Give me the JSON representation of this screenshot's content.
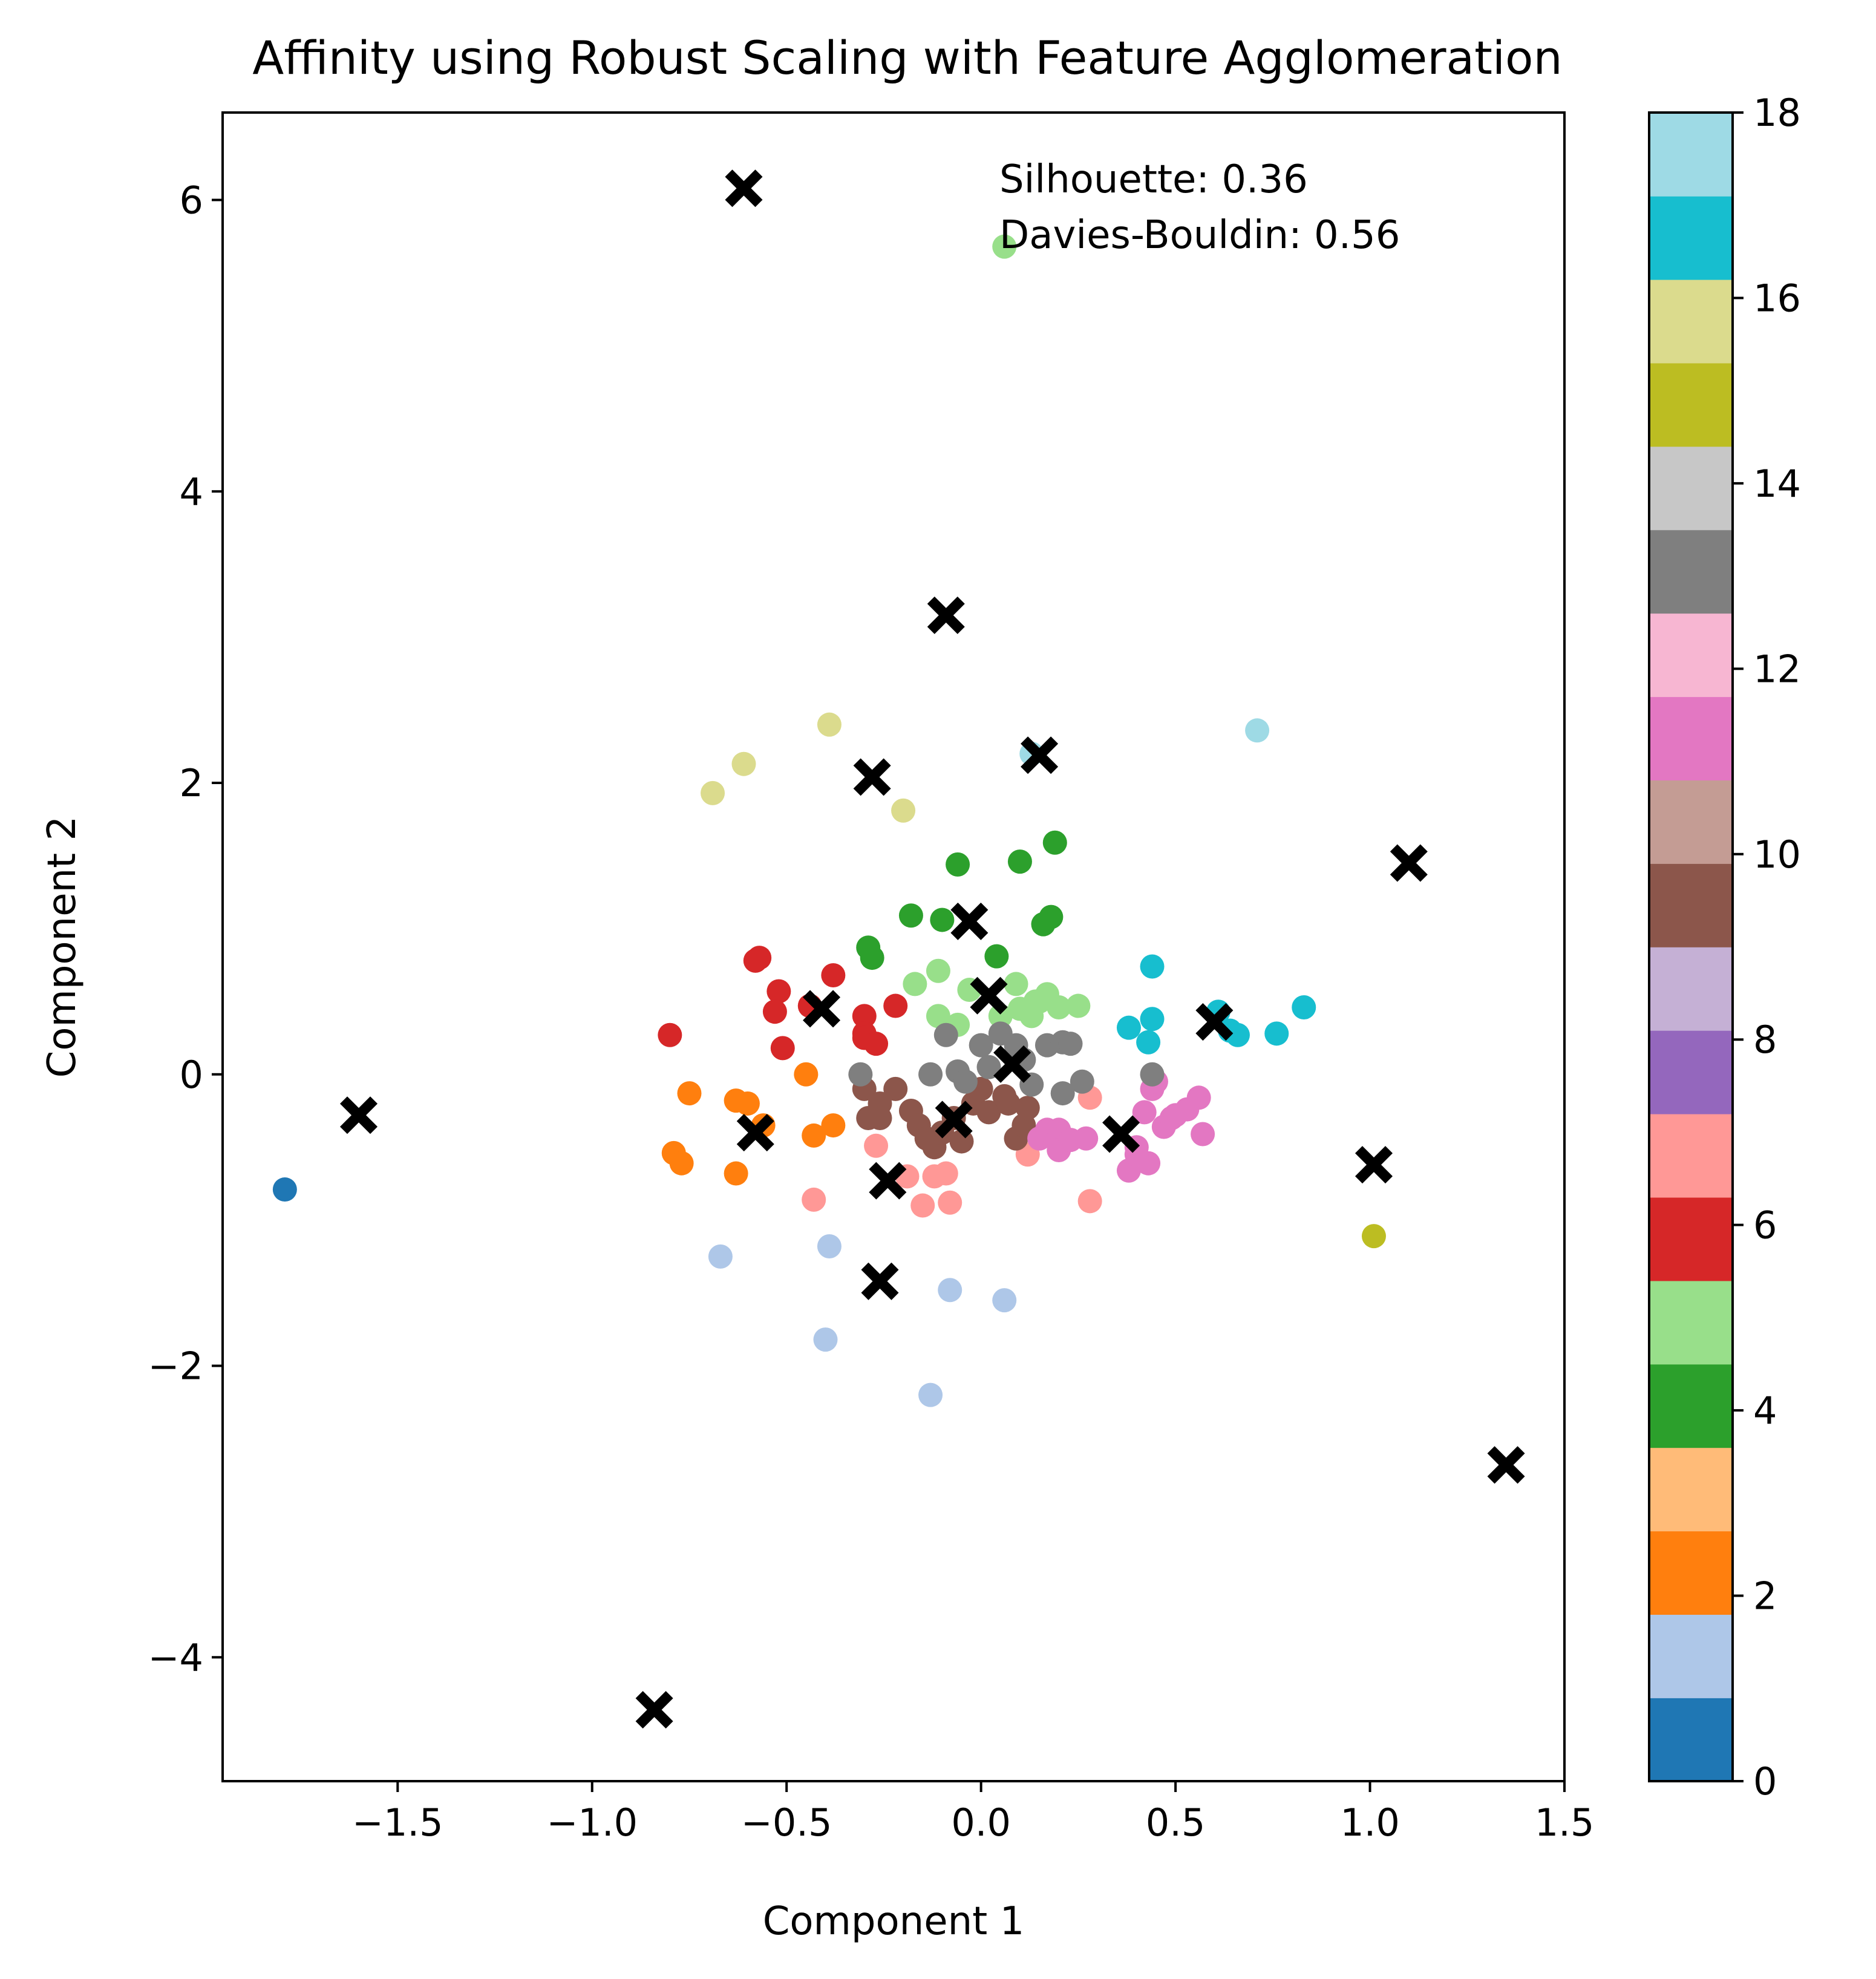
{
  "chart_data": {
    "type": "scatter",
    "title": "Affinity using Robust Scaling with Feature Agglomeration",
    "xlabel": "Component 1",
    "ylabel": "Component 2",
    "xlim": [
      -1.95,
      1.5
    ],
    "ylim": [
      -4.85,
      6.6
    ],
    "xticks": [
      -1.5,
      -1.0,
      -0.5,
      0.0,
      0.5,
      1.0,
      1.5
    ],
    "xtick_labels": [
      "−1.5",
      "−1.0",
      "−0.5",
      "0.0",
      "0.5",
      "1.0",
      "1.5"
    ],
    "yticks": [
      -4,
      -2,
      0,
      2,
      4,
      6
    ],
    "ytick_labels": [
      "−4",
      "−2",
      "0",
      "2",
      "4",
      "6"
    ],
    "grid": false,
    "annotations": [
      "Silhouette: 0.36",
      "Davies-Bouldin: 0.56"
    ],
    "colorbar": {
      "range": [
        0,
        18
      ],
      "ticks": [
        0,
        2,
        4,
        6,
        8,
        10,
        12,
        14,
        16,
        18
      ],
      "colors": [
        "#1f77b4",
        "#aec7e8",
        "#ff7f0e",
        "#ffbb78",
        "#2ca02c",
        "#98df8a",
        "#d62728",
        "#ff9896",
        "#9467bd",
        "#c5b0d5",
        "#8c564b",
        "#c49c94",
        "#e377c2",
        "#f7b6d2",
        "#7f7f7f",
        "#c7c7c7",
        "#bcbd22",
        "#dbdb8d",
        "#17becf",
        "#9edae5"
      ]
    },
    "series": [
      {
        "cluster": 0,
        "points": [
          [
            -1.79,
            -0.79
          ]
        ]
      },
      {
        "cluster": 1,
        "points": [
          [
            -0.67,
            -1.25
          ],
          [
            -0.39,
            -1.18
          ],
          [
            -0.4,
            -1.82
          ],
          [
            -0.08,
            -1.48
          ],
          [
            0.06,
            -1.55
          ],
          [
            -0.13,
            -2.2
          ]
        ]
      },
      {
        "cluster": 2,
        "points": [
          [
            -0.75,
            -0.13
          ],
          [
            -0.79,
            -0.54
          ],
          [
            -0.77,
            -0.61
          ],
          [
            -0.63,
            -0.18
          ],
          [
            -0.6,
            -0.2
          ],
          [
            -0.63,
            -0.68
          ],
          [
            -0.45,
            0.0
          ],
          [
            -0.38,
            -0.35
          ],
          [
            -0.43,
            -0.42
          ],
          [
            -0.56,
            -0.35
          ]
        ]
      },
      {
        "cluster": 4,
        "points": [
          [
            -0.29,
            0.87
          ],
          [
            -0.28,
            0.8
          ],
          [
            -0.18,
            1.09
          ],
          [
            -0.1,
            1.06
          ],
          [
            -0.06,
            1.44
          ],
          [
            0.1,
            1.46
          ],
          [
            0.19,
            1.59
          ],
          [
            0.04,
            0.81
          ],
          [
            0.18,
            1.08
          ],
          [
            0.16,
            1.03
          ]
        ]
      },
      {
        "cluster": 5,
        "points": [
          [
            -0.17,
            0.62
          ],
          [
            -0.11,
            0.71
          ],
          [
            -0.11,
            0.4
          ],
          [
            -0.06,
            0.34
          ],
          [
            -0.03,
            0.58
          ],
          [
            0.05,
            0.4
          ],
          [
            0.09,
            0.62
          ],
          [
            0.1,
            0.45
          ],
          [
            0.13,
            0.4
          ],
          [
            0.14,
            0.5
          ],
          [
            0.17,
            0.55
          ],
          [
            0.2,
            0.46
          ],
          [
            0.25,
            0.47
          ],
          [
            0.15,
            0.5
          ],
          [
            0.06,
            5.68
          ]
        ]
      },
      {
        "cluster": 6,
        "points": [
          [
            -0.8,
            0.27
          ],
          [
            -0.57,
            0.8
          ],
          [
            -0.58,
            0.78
          ],
          [
            -0.52,
            0.57
          ],
          [
            -0.53,
            0.43
          ],
          [
            -0.51,
            0.18
          ],
          [
            -0.44,
            0.47
          ],
          [
            -0.38,
            0.68
          ],
          [
            -0.3,
            0.4
          ],
          [
            -0.3,
            0.28
          ],
          [
            -0.3,
            0.25
          ],
          [
            -0.27,
            0.21
          ],
          [
            -0.22,
            0.47
          ]
        ]
      },
      {
        "cluster": 7,
        "points": [
          [
            -0.43,
            -0.86
          ],
          [
            -0.27,
            -0.49
          ],
          [
            -0.19,
            -0.7
          ],
          [
            -0.15,
            -0.9
          ],
          [
            -0.12,
            -0.7
          ],
          [
            -0.09,
            -0.68
          ],
          [
            -0.08,
            -0.88
          ],
          [
            0.28,
            -0.87
          ],
          [
            0.28,
            -0.16
          ],
          [
            0.12,
            -0.55
          ]
        ]
      },
      {
        "cluster": 10,
        "points": [
          [
            -0.3,
            -0.1
          ],
          [
            -0.29,
            -0.3
          ],
          [
            -0.26,
            -0.2
          ],
          [
            -0.26,
            -0.3
          ],
          [
            -0.22,
            -0.1
          ],
          [
            -0.18,
            -0.25
          ],
          [
            -0.16,
            -0.35
          ],
          [
            -0.14,
            -0.44
          ],
          [
            -0.12,
            -0.5
          ],
          [
            -0.1,
            -0.4
          ],
          [
            -0.07,
            -0.3
          ],
          [
            -0.05,
            -0.46
          ],
          [
            -0.02,
            -0.2
          ],
          [
            0.0,
            -0.1
          ],
          [
            0.02,
            -0.26
          ],
          [
            0.07,
            -0.2
          ],
          [
            0.09,
            -0.44
          ],
          [
            0.11,
            -0.35
          ],
          [
            0.12,
            -0.23
          ],
          [
            0.06,
            -0.15
          ]
        ]
      },
      {
        "cluster": 12,
        "points": [
          [
            0.15,
            -0.44
          ],
          [
            0.17,
            -0.38
          ],
          [
            0.2,
            -0.38
          ],
          [
            0.2,
            -0.52
          ],
          [
            0.23,
            -0.45
          ],
          [
            0.27,
            -0.44
          ],
          [
            0.38,
            -0.66
          ],
          [
            0.4,
            -0.5
          ],
          [
            0.42,
            -0.26
          ],
          [
            0.44,
            -0.1
          ],
          [
            0.45,
            -0.05
          ],
          [
            0.47,
            -0.36
          ],
          [
            0.43,
            -0.61
          ],
          [
            0.49,
            -0.3
          ],
          [
            0.5,
            -0.28
          ],
          [
            0.53,
            -0.24
          ],
          [
            0.56,
            -0.16
          ],
          [
            0.57,
            -0.41
          ],
          [
            0.4,
            -0.55
          ]
        ]
      },
      {
        "cluster": 14,
        "points": [
          [
            -0.31,
            0.0
          ],
          [
            -0.13,
            0.0
          ],
          [
            -0.09,
            0.27
          ],
          [
            -0.06,
            0.02
          ],
          [
            -0.04,
            -0.05
          ],
          [
            0.0,
            0.2
          ],
          [
            0.02,
            0.05
          ],
          [
            0.05,
            0.28
          ],
          [
            0.09,
            0.2
          ],
          [
            0.11,
            0.1
          ],
          [
            0.13,
            -0.07
          ],
          [
            0.17,
            0.2
          ],
          [
            0.21,
            0.22
          ],
          [
            0.23,
            0.21
          ],
          [
            0.21,
            -0.13
          ],
          [
            0.26,
            -0.05
          ],
          [
            0.44,
            0.0
          ]
        ]
      },
      {
        "cluster": 16,
        "points": [
          [
            1.01,
            -1.11
          ]
        ]
      },
      {
        "cluster": 17,
        "points": [
          [
            -0.69,
            1.93
          ],
          [
            -0.61,
            2.13
          ],
          [
            -0.39,
            2.4
          ],
          [
            -0.2,
            1.81
          ]
        ]
      },
      {
        "cluster": 18,
        "points": [
          [
            0.38,
            0.32
          ],
          [
            0.43,
            0.22
          ],
          [
            0.44,
            0.38
          ],
          [
            0.44,
            0.74
          ],
          [
            0.61,
            0.43
          ],
          [
            0.64,
            0.3
          ],
          [
            0.66,
            0.27
          ],
          [
            0.76,
            0.28
          ],
          [
            0.83,
            0.46
          ]
        ]
      },
      {
        "cluster": 19,
        "points": [
          [
            0.71,
            2.36
          ],
          [
            0.13,
            2.2
          ]
        ]
      }
    ],
    "centers": [
      [
        -0.61,
        6.08
      ],
      [
        -0.09,
        3.15
      ],
      [
        0.15,
        2.19
      ],
      [
        -0.28,
        2.04
      ],
      [
        1.1,
        1.45
      ],
      [
        -0.03,
        1.05
      ],
      [
        0.02,
        0.54
      ],
      [
        -0.41,
        0.45
      ],
      [
        0.6,
        0.36
      ],
      [
        0.08,
        0.07
      ],
      [
        -1.6,
        -0.28
      ],
      [
        -0.58,
        -0.4
      ],
      [
        -0.07,
        -0.31
      ],
      [
        0.36,
        -0.41
      ],
      [
        -0.24,
        -0.73
      ],
      [
        1.01,
        -0.62
      ],
      [
        -0.26,
        -1.42
      ],
      [
        1.35,
        -2.68
      ],
      [
        -0.84,
        -4.36
      ]
    ]
  }
}
